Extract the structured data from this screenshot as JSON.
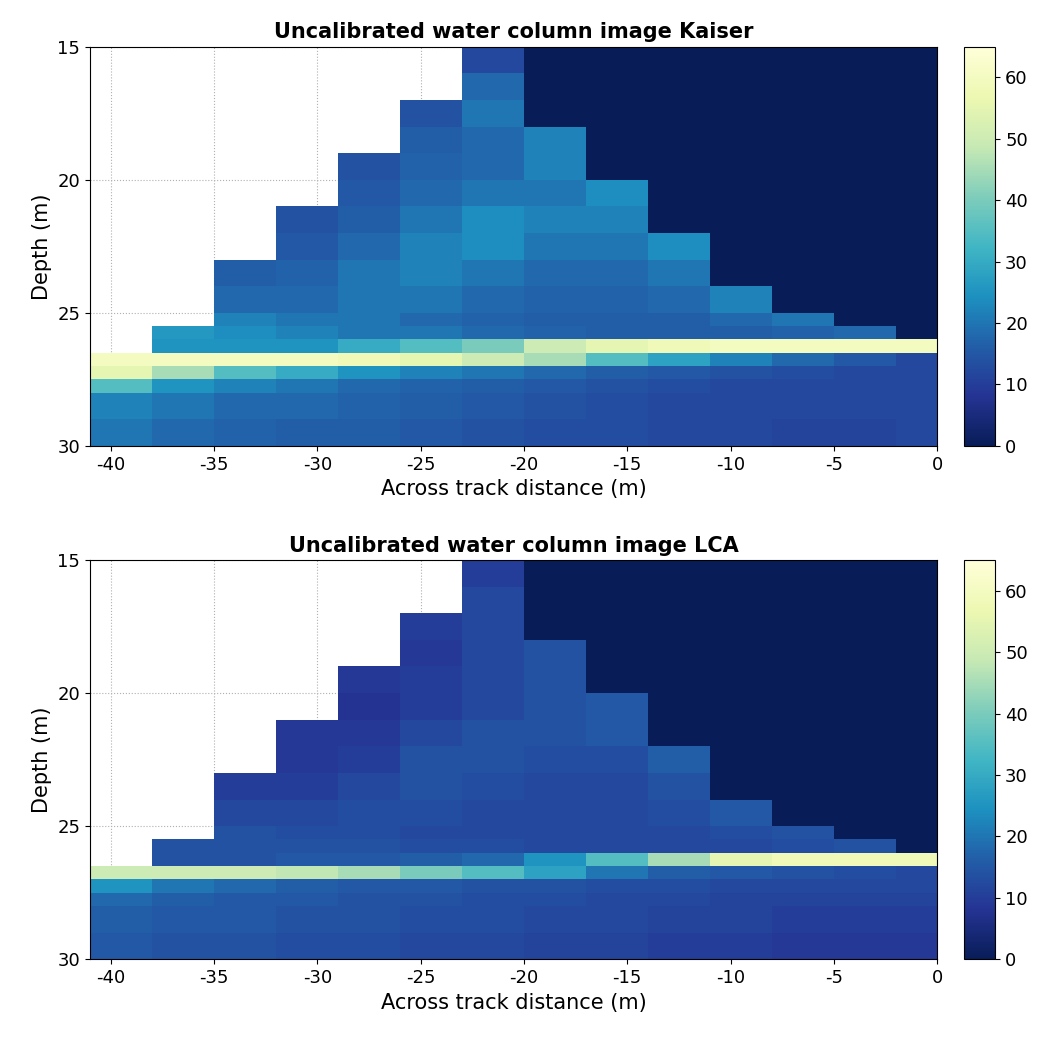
{
  "chart_data": [
    {
      "type": "heatmap",
      "title": "Uncalibrated water column image Kaiser",
      "x_label": "Across track distance (m)",
      "y_label": "Depth (m)",
      "x_edges": [
        -41,
        -38,
        -35,
        -32,
        -29,
        -26,
        -23,
        -20,
        -17,
        -14,
        -11,
        -8,
        -5,
        -2,
        0
      ],
      "y_edges": [
        15,
        16,
        17,
        18,
        19,
        20,
        21,
        22,
        23,
        24,
        25,
        25.5,
        26,
        26.5,
        27,
        27.5,
        28,
        29,
        30
      ],
      "cells": [
        [
          null,
          null,
          null,
          null,
          null,
          null,
          12,
          0,
          0,
          0,
          0,
          0,
          0,
          0
        ],
        [
          null,
          null,
          null,
          null,
          null,
          null,
          18,
          0,
          0,
          0,
          0,
          0,
          0,
          0
        ],
        [
          null,
          null,
          null,
          null,
          null,
          14,
          20,
          0,
          0,
          0,
          0,
          0,
          0,
          0
        ],
        [
          null,
          null,
          null,
          null,
          null,
          16,
          18,
          22,
          0,
          0,
          0,
          0,
          0,
          0
        ],
        [
          null,
          null,
          null,
          null,
          14,
          17,
          18,
          22,
          0,
          0,
          0,
          0,
          0,
          0
        ],
        [
          null,
          null,
          null,
          null,
          15,
          18,
          20,
          20,
          24,
          0,
          0,
          0,
          0,
          0
        ],
        [
          null,
          null,
          null,
          14,
          16,
          20,
          24,
          22,
          22,
          0,
          0,
          0,
          0,
          0
        ],
        [
          null,
          null,
          null,
          15,
          18,
          22,
          24,
          20,
          20,
          24,
          0,
          0,
          0,
          0
        ],
        [
          null,
          null,
          16,
          17,
          20,
          22,
          20,
          18,
          18,
          20,
          0,
          0,
          0,
          0
        ],
        [
          null,
          null,
          18,
          18,
          20,
          20,
          18,
          17,
          17,
          18,
          22,
          0,
          0,
          0
        ],
        [
          null,
          null,
          22,
          20,
          20,
          18,
          17,
          16,
          16,
          16,
          18,
          20,
          0,
          0
        ],
        [
          null,
          26,
          24,
          22,
          20,
          20,
          18,
          17,
          16,
          16,
          16,
          17,
          18,
          0
        ],
        [
          null,
          25,
          25,
          25,
          30,
          35,
          40,
          50,
          55,
          58,
          60,
          60,
          60,
          60
        ],
        [
          60,
          60,
          60,
          60,
          58,
          55,
          50,
          45,
          35,
          28,
          22,
          18,
          15,
          12
        ],
        [
          55,
          45,
          35,
          30,
          25,
          22,
          20,
          18,
          16,
          15,
          14,
          13,
          12,
          12
        ],
        [
          35,
          25,
          22,
          20,
          18,
          17,
          16,
          15,
          14,
          13,
          12,
          12,
          12,
          12
        ],
        [
          22,
          20,
          18,
          18,
          17,
          16,
          15,
          14,
          13,
          12,
          12,
          12,
          12,
          12
        ],
        [
          20,
          18,
          17,
          16,
          16,
          15,
          14,
          13,
          13,
          12,
          12,
          11,
          11,
          12
        ]
      ],
      "xlim": [
        -41,
        0
      ],
      "ylim": [
        30,
        15
      ],
      "xticks": [
        -40,
        -35,
        -30,
        -25,
        -20,
        -15,
        -10,
        -5,
        0
      ],
      "yticks": [
        15,
        20,
        25,
        30
      ],
      "grid": true,
      "colorbar_range": [
        0,
        65
      ],
      "colorbar_ticks": [
        0,
        10,
        20,
        30,
        40,
        50,
        60
      ]
    },
    {
      "type": "heatmap",
      "title": "Uncalibrated water column image LCA",
      "x_label": "Across track distance (m)",
      "y_label": "Depth (m)",
      "x_edges": [
        -41,
        -38,
        -35,
        -32,
        -29,
        -26,
        -23,
        -20,
        -17,
        -14,
        -11,
        -8,
        -5,
        -2,
        0
      ],
      "y_edges": [
        15,
        16,
        17,
        18,
        19,
        20,
        21,
        22,
        23,
        24,
        25,
        25.5,
        26,
        26.5,
        27,
        27.5,
        28,
        29,
        30
      ],
      "cells": [
        [
          null,
          null,
          null,
          null,
          null,
          null,
          10,
          0,
          0,
          0,
          0,
          0,
          0,
          0
        ],
        [
          null,
          null,
          null,
          null,
          null,
          null,
          12,
          0,
          0,
          0,
          0,
          0,
          0,
          0
        ],
        [
          null,
          null,
          null,
          null,
          null,
          10,
          12,
          0,
          0,
          0,
          0,
          0,
          0,
          0
        ],
        [
          null,
          null,
          null,
          null,
          null,
          9,
          12,
          14,
          0,
          0,
          0,
          0,
          0,
          0
        ],
        [
          null,
          null,
          null,
          null,
          9,
          10,
          12,
          14,
          0,
          0,
          0,
          0,
          0,
          0
        ],
        [
          null,
          null,
          null,
          null,
          8,
          10,
          12,
          14,
          15,
          0,
          0,
          0,
          0,
          0
        ],
        [
          null,
          null,
          null,
          9,
          9,
          12,
          14,
          14,
          15,
          0,
          0,
          0,
          0,
          0
        ],
        [
          null,
          null,
          null,
          9,
          10,
          14,
          14,
          13,
          13,
          16,
          0,
          0,
          0,
          0
        ],
        [
          null,
          null,
          10,
          10,
          12,
          14,
          13,
          12,
          12,
          14,
          0,
          0,
          0,
          0
        ],
        [
          null,
          null,
          12,
          12,
          13,
          13,
          12,
          12,
          12,
          13,
          15,
          0,
          0,
          0
        ],
        [
          null,
          null,
          14,
          13,
          13,
          12,
          12,
          12,
          12,
          12,
          13,
          14,
          0,
          0
        ],
        [
          null,
          14,
          14,
          14,
          14,
          13,
          13,
          12,
          12,
          12,
          12,
          13,
          14,
          0
        ],
        [
          null,
          14,
          14,
          15,
          15,
          16,
          18,
          25,
          35,
          45,
          55,
          58,
          58,
          58
        ],
        [
          50,
          50,
          50,
          48,
          45,
          40,
          35,
          28,
          20,
          16,
          15,
          14,
          13,
          12
        ],
        [
          25,
          20,
          18,
          16,
          15,
          15,
          14,
          14,
          13,
          13,
          12,
          12,
          12,
          12
        ],
        [
          18,
          16,
          15,
          15,
          14,
          14,
          13,
          13,
          12,
          12,
          11,
          11,
          11,
          11
        ],
        [
          16,
          15,
          15,
          14,
          14,
          13,
          13,
          12,
          12,
          11,
          11,
          10,
          10,
          10
        ],
        [
          15,
          14,
          14,
          13,
          13,
          12,
          12,
          11,
          11,
          10,
          10,
          9,
          9,
          9
        ]
      ],
      "xlim": [
        -41,
        0
      ],
      "ylim": [
        30,
        15
      ],
      "xticks": [
        -40,
        -35,
        -30,
        -25,
        -20,
        -15,
        -10,
        -5,
        0
      ],
      "yticks": [
        15,
        20,
        25,
        30
      ],
      "grid": true,
      "colorbar_range": [
        0,
        65
      ],
      "colorbar_ticks": [
        0,
        10,
        20,
        30,
        40,
        50,
        60
      ]
    }
  ]
}
